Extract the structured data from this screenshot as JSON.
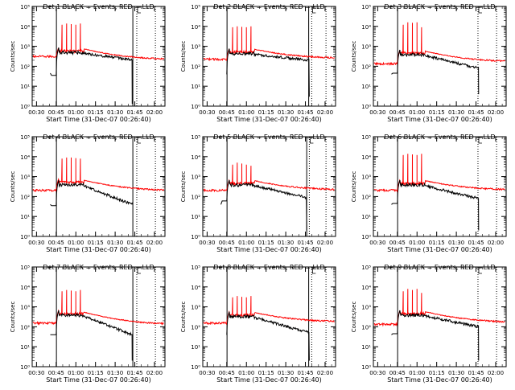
{
  "chart_data": {
    "type": "line",
    "layout": "3x3 grid of time-series panels",
    "shared": {
      "xlabel": "Start Time (31-Dec-07 00:26:40)",
      "ylabel": "Counts/sec",
      "x_tick_labels": [
        "00:30",
        "00:45",
        "01:00",
        "01:15",
        "01:30",
        "01:45",
        "02:00"
      ],
      "x_ticks_minutes": [
        30,
        45,
        60,
        75,
        90,
        105,
        120
      ],
      "xlim_minutes": [
        26.7,
        128
      ],
      "ylim": [
        1,
        100000
      ],
      "y_scale": "log",
      "y_tick_labels": [
        "10⁰",
        "10¹",
        "10²",
        "10³",
        "10⁴",
        "10⁵"
      ],
      "grid": false,
      "series_colors": {
        "events": "#000000",
        "lld": "#ff0000"
      }
    },
    "panels": [
      {
        "title": "Det 1 BLACK = Events, RED = LLD",
        "detector": 1,
        "marker_lines": {
          "solid": [
            45.2,
            103.5
          ],
          "dotted": [
            106.5,
            120.7
          ]
        },
        "events": {
          "start_minute": 40.5,
          "start_value": 45,
          "step_value": 35,
          "peak_value": 900,
          "decay_end_value": 210,
          "end_minute": 103,
          "drop_value": 1.3
        },
        "lld": {
          "baseline": 300,
          "peak_value": 900,
          "end_value": 220,
          "spike_values": [
            12000,
            14000,
            13000,
            12000,
            14000
          ]
        }
      },
      {
        "title": "Det 2 BLACK = Events, RED = LLD",
        "detector": 2,
        "marker_lines": {
          "solid": [
            45.2,
            107.5
          ],
          "dotted": [
            109.8,
            120.7
          ]
        },
        "events": {
          "start_minute": 44.8,
          "start_value": 40,
          "step_value": 40,
          "peak_value": 800,
          "decay_end_value": 200,
          "end_minute": 108,
          "drop_value": 3
        },
        "lld": {
          "baseline": 220,
          "peak_value": 800,
          "end_value": 260,
          "spike_values": [
            9000,
            10000,
            9500,
            9000,
            10000
          ]
        }
      },
      {
        "title": "Det 3 BLACK = Events, RED = LLD",
        "detector": 3,
        "marker_lines": {
          "solid": [
            45.2
          ],
          "dotted": [
            106.5,
            120.7
          ]
        },
        "events": {
          "start_minute": 40.5,
          "start_value": 40,
          "step_value": 45,
          "peak_value": 700,
          "decay_end_value": 80,
          "end_minute": 107,
          "drop_value": 4
        },
        "lld": {
          "baseline": 130,
          "peak_value": 700,
          "end_value": 170,
          "spike_values": [
            12000,
            16000,
            15000,
            16000,
            9000
          ]
        }
      },
      {
        "title": "Det 4 BLACK = Events, RED = LLD",
        "detector": 4,
        "marker_lines": {
          "solid": [
            45.2,
            103.5
          ],
          "dotted": [
            106.5,
            120.7
          ]
        },
        "events": {
          "start_minute": 40.5,
          "start_value": 40,
          "step_value": 35,
          "peak_value": 700,
          "decay_end_value": 40,
          "end_minute": 103,
          "drop_value": 40
        },
        "lld": {
          "baseline": 200,
          "peak_value": 800,
          "end_value": 200,
          "spike_values": [
            8000,
            9000,
            9000,
            8500,
            8000
          ]
        }
      },
      {
        "title": "Det 5 BLACK = Events, RED = LLD",
        "detector": 5,
        "marker_lines": {
          "solid": [
            45.2,
            106.0
          ],
          "dotted": [
            108.0,
            120.7
          ]
        },
        "events": {
          "start_minute": 40.5,
          "start_value": 40,
          "step_value": 60,
          "peak_value": 700,
          "decay_end_value": 90,
          "end_minute": 106,
          "drop_value": 2
        },
        "lld": {
          "baseline": 200,
          "peak_value": 700,
          "end_value": 220,
          "spike_values": [
            4000,
            5000,
            4500,
            4000,
            3500
          ]
        }
      },
      {
        "title": "Det 6 BLACK = Events, RED = LLD",
        "detector": 6,
        "marker_lines": {
          "solid": [
            45.2
          ],
          "dotted": [
            106.5,
            120.7
          ]
        },
        "events": {
          "start_minute": 40.5,
          "start_value": 40,
          "step_value": 45,
          "peak_value": 700,
          "decay_end_value": 80,
          "end_minute": 107,
          "drop_value": 2
        },
        "lld": {
          "baseline": 200,
          "peak_value": 700,
          "end_value": 220,
          "spike_values": [
            12000,
            14000,
            13000,
            12000,
            14000
          ]
        }
      },
      {
        "title": "Det 7 BLACK = Events, RED = LLD",
        "detector": 7,
        "marker_lines": {
          "solid": [
            45.2,
            103.5
          ],
          "dotted": [
            106.5,
            120.7
          ]
        },
        "events": {
          "start_minute": 40.5,
          "start_value": 40,
          "step_value": 40,
          "peak_value": 700,
          "decay_end_value": 40,
          "end_minute": 103,
          "drop_value": 2
        },
        "lld": {
          "baseline": 150,
          "peak_value": 700,
          "end_value": 130,
          "spike_values": [
            6000,
            7000,
            6500,
            6000,
            7000
          ]
        }
      },
      {
        "title": "Det 8 BLACK = Events, RED = LLD",
        "detector": 8,
        "marker_lines": {
          "solid": [
            45.2,
            107.5
          ],
          "dotted": [
            109.8,
            120.7
          ]
        },
        "events": {
          "start_minute": 44.8,
          "start_value": 40,
          "step_value": 40,
          "peak_value": 600,
          "decay_end_value": 50,
          "end_minute": 108,
          "drop_value": 2
        },
        "lld": {
          "baseline": 150,
          "peak_value": 600,
          "end_value": 180,
          "spike_values": [
            3000,
            3500,
            3200,
            3000,
            3500
          ]
        }
      },
      {
        "title": "Det 9 BLACK = Events, RED = LLD",
        "detector": 9,
        "marker_lines": {
          "solid": [
            45.2
          ],
          "dotted": [
            106.5,
            120.7
          ]
        },
        "events": {
          "start_minute": 40.5,
          "start_value": 40,
          "step_value": 45,
          "peak_value": 700,
          "decay_end_value": 100,
          "end_minute": 107,
          "drop_value": 2
        },
        "lld": {
          "baseline": 130,
          "peak_value": 700,
          "end_value": 170,
          "spike_values": [
            6000,
            8000,
            7000,
            8000,
            5000
          ]
        }
      }
    ]
  }
}
